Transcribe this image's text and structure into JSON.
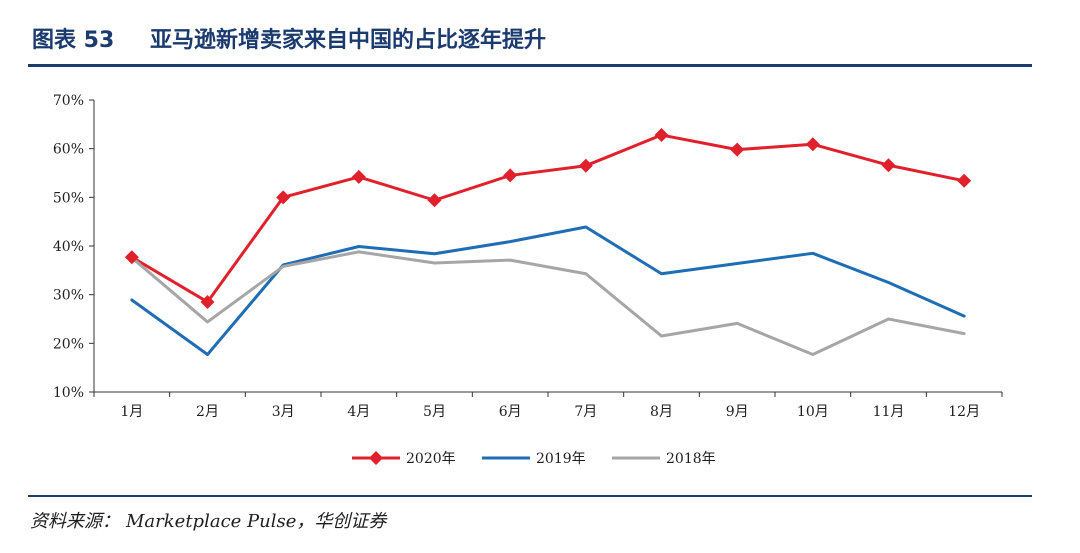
{
  "figure": {
    "label": "图表 53",
    "title": "亚马逊新增卖家来自中国的占比逐年提升"
  },
  "source": {
    "label": "资料来源：",
    "text": "Marketplace Pulse，华创证券"
  },
  "chart_data": {
    "type": "line",
    "categories": [
      "1月",
      "2月",
      "3月",
      "4月",
      "5月",
      "6月",
      "7月",
      "8月",
      "9月",
      "10月",
      "11月",
      "12月"
    ],
    "series": [
      {
        "name": "2020年",
        "color": "#e0202a",
        "marker": "diamond",
        "values": [
          37.7,
          28.5,
          50.0,
          54.2,
          49.4,
          54.5,
          56.5,
          62.8,
          59.8,
          60.9,
          56.6,
          53.4
        ]
      },
      {
        "name": "2019年",
        "color": "#1f6db5",
        "marker": "none",
        "values": [
          28.9,
          17.7,
          36.1,
          39.9,
          38.4,
          40.9,
          43.9,
          34.3,
          36.4,
          38.5,
          32.5,
          25.6
        ]
      },
      {
        "name": "2018年",
        "color": "#a6a6a6",
        "marker": "none",
        "values": [
          37.6,
          24.4,
          35.8,
          38.8,
          36.5,
          37.1,
          34.3,
          21.5,
          24.1,
          17.7,
          25.0,
          22.0
        ]
      }
    ],
    "ylim": [
      10,
      70
    ],
    "yticks": [
      "10%",
      "20%",
      "30%",
      "40%",
      "50%",
      "60%",
      "70%"
    ],
    "xlabel": "",
    "ylabel": "",
    "grid": false,
    "legend_position": "bottom"
  }
}
